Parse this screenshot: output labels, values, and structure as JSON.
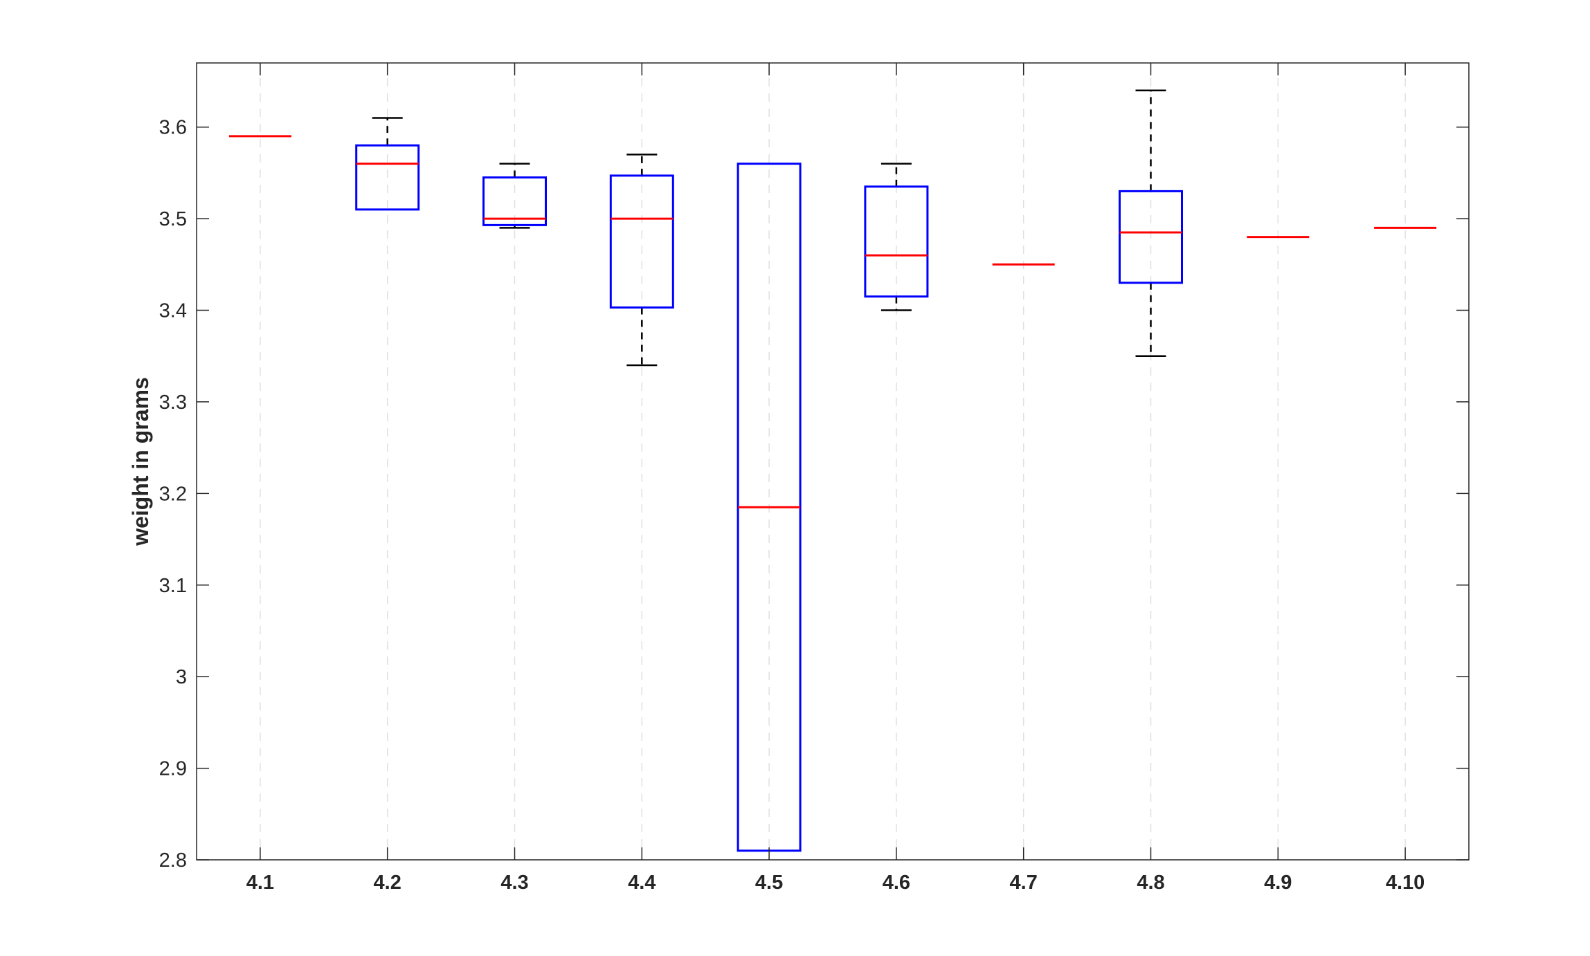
{
  "chart_data": {
    "type": "boxplot",
    "title": "",
    "xlabel": "",
    "ylabel": "weight in grams",
    "ylim": [
      2.8,
      3.67
    ],
    "yticks": [
      2.8,
      2.9,
      3.0,
      3.1,
      3.2,
      3.3,
      3.4,
      3.5,
      3.6
    ],
    "ytick_labels": [
      "2.8",
      "2.9",
      "3",
      "3.1",
      "3.2",
      "3.3",
      "3.4",
      "3.5",
      "3.6"
    ],
    "categories": [
      "4.1",
      "4.2",
      "4.3",
      "4.4",
      "4.5",
      "4.6",
      "4.7",
      "4.8",
      "4.9",
      "4.10"
    ],
    "grid": "x-dashed",
    "colors": {
      "box": "#0000ff",
      "median": "#ff0000",
      "whisker": "#000000",
      "grid": "#e0e0e0",
      "axis": "#262626"
    },
    "boxes": [
      {
        "category": "4.1",
        "whisker_low": 3.59,
        "q1": 3.59,
        "median": 3.59,
        "q3": 3.59,
        "whisker_high": 3.59
      },
      {
        "category": "4.2",
        "whisker_low": 3.51,
        "q1": 3.51,
        "median": 3.56,
        "q3": 3.58,
        "whisker_high": 3.61
      },
      {
        "category": "4.3",
        "whisker_low": 3.49,
        "q1": 3.493,
        "median": 3.5,
        "q3": 3.545,
        "whisker_high": 3.56
      },
      {
        "category": "4.4",
        "whisker_low": 3.34,
        "q1": 3.403,
        "median": 3.5,
        "q3": 3.547,
        "whisker_high": 3.57
      },
      {
        "category": "4.5",
        "whisker_low": 2.81,
        "q1": 2.81,
        "median": 3.185,
        "q3": 3.56,
        "whisker_high": 3.56
      },
      {
        "category": "4.6",
        "whisker_low": 3.4,
        "q1": 3.415,
        "median": 3.46,
        "q3": 3.535,
        "whisker_high": 3.56
      },
      {
        "category": "4.7",
        "whisker_low": 3.45,
        "q1": 3.45,
        "median": 3.45,
        "q3": 3.45,
        "whisker_high": 3.45
      },
      {
        "category": "4.8",
        "whisker_low": 3.35,
        "q1": 3.43,
        "median": 3.485,
        "q3": 3.53,
        "whisker_high": 3.64
      },
      {
        "category": "4.9",
        "whisker_low": 3.48,
        "q1": 3.48,
        "median": 3.48,
        "q3": 3.48,
        "whisker_high": 3.48
      },
      {
        "category": "4.10",
        "whisker_low": 3.49,
        "q1": 3.49,
        "median": 3.49,
        "q3": 3.49,
        "whisker_high": 3.49
      }
    ]
  }
}
